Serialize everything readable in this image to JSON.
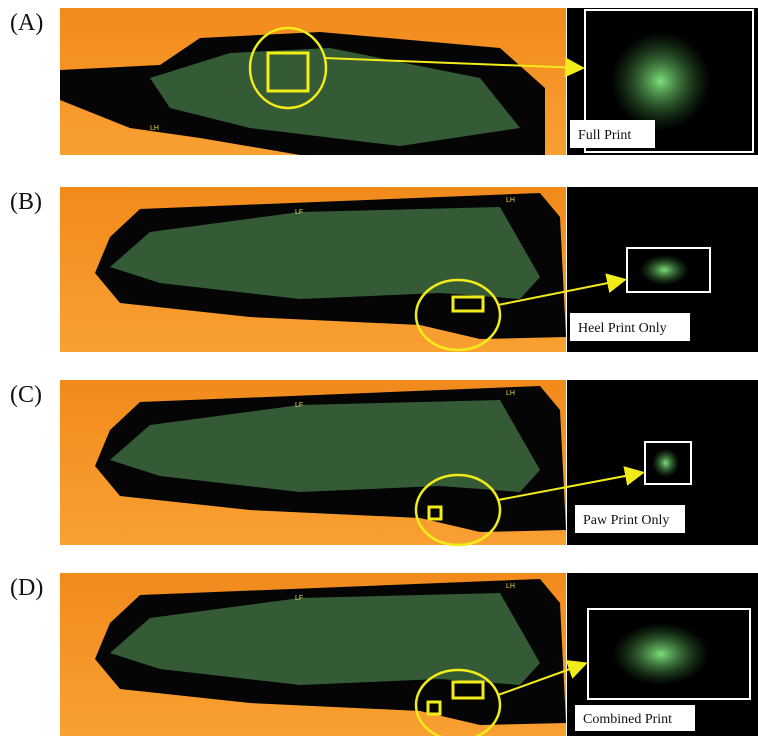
{
  "panels": [
    {
      "label": "(A)",
      "caption": "Full Print",
      "marks": [
        "LH"
      ]
    },
    {
      "label": "(B)",
      "caption": "Heel Print Only",
      "marks": [
        "LF",
        "LH"
      ]
    },
    {
      "label": "(C)",
      "caption": "Paw Print Only",
      "marks": [
        "LF",
        "LH"
      ]
    },
    {
      "label": "(D)",
      "caption": "Combined Print",
      "marks": [
        "LF",
        "LH"
      ]
    }
  ]
}
